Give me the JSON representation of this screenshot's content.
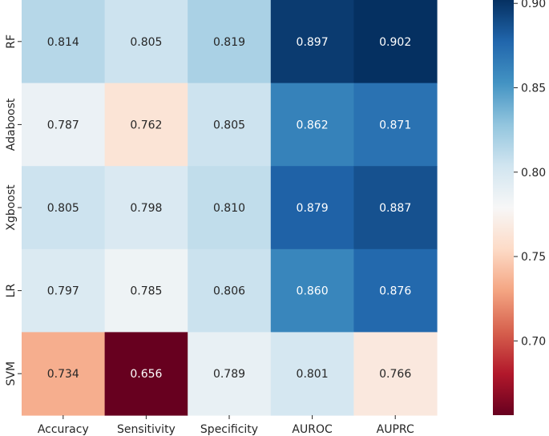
{
  "chart_data": {
    "type": "heatmap",
    "title": "",
    "xlabel": "",
    "ylabel": "",
    "columns": [
      "Accuracy",
      "Sensitivity",
      "Specificity",
      "AUROC",
      "AUPRC"
    ],
    "rows": [
      "RF",
      "Adaboost",
      "Xgboost",
      "LR",
      "SVM"
    ],
    "values": [
      [
        0.814,
        0.805,
        0.819,
        0.897,
        0.902
      ],
      [
        0.787,
        0.762,
        0.805,
        0.862,
        0.871
      ],
      [
        0.805,
        0.798,
        0.81,
        0.879,
        0.887
      ],
      [
        0.797,
        0.785,
        0.806,
        0.86,
        0.876
      ],
      [
        0.734,
        0.656,
        0.789,
        0.801,
        0.766
      ]
    ],
    "value_labels": [
      [
        "0.814",
        "0.805",
        "0.819",
        "0.897",
        "0.902"
      ],
      [
        "0.787",
        "0.762",
        "0.805",
        "0.862",
        "0.871"
      ],
      [
        "0.805",
        "0.798",
        "0.810",
        "0.879",
        "0.887"
      ],
      [
        "0.797",
        "0.785",
        "0.806",
        "0.860",
        "0.876"
      ],
      [
        "0.734",
        "0.656",
        "0.789",
        "0.801",
        "0.766"
      ]
    ],
    "colormap": "RdBu",
    "vmin": 0.656,
    "vmax": 0.902,
    "colorbar": {
      "ticks": [
        0.7,
        0.75,
        0.8,
        0.85,
        0.9
      ],
      "tick_labels": [
        "0.70",
        "0.75",
        "0.80",
        "0.85",
        "0.90"
      ]
    }
  }
}
